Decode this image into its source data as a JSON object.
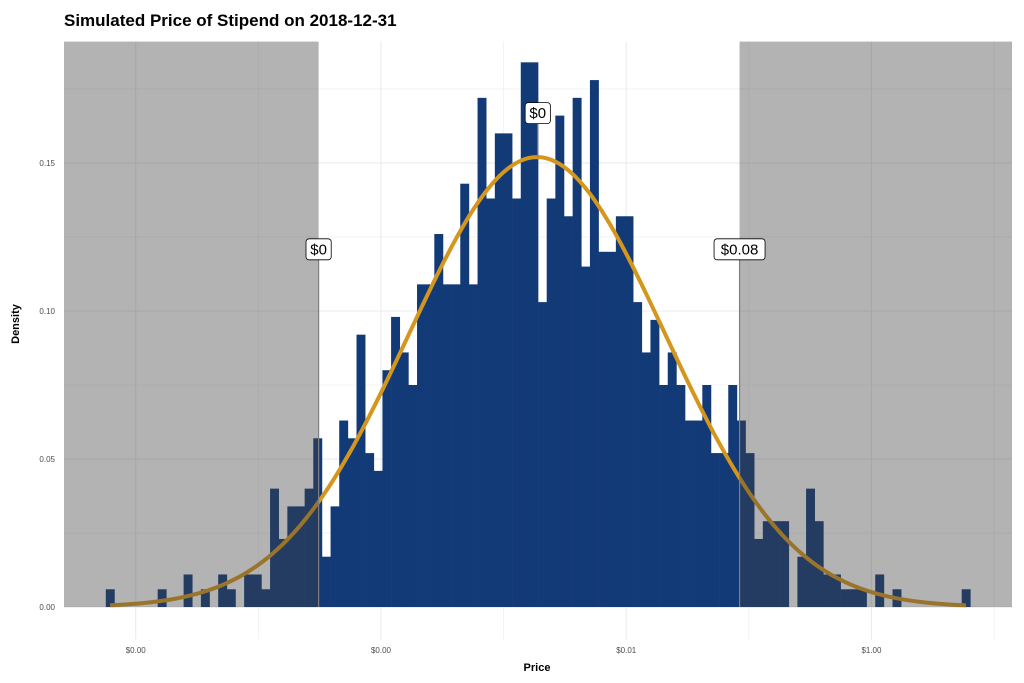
{
  "chart_data": {
    "type": "bar",
    "subtype": "histogram with fitted density curve",
    "title": "Simulated Price of Stipend on 2018-12-31",
    "xlabel": "Price",
    "ylabel": "Density",
    "x_scale": "log10",
    "xlim": [
      2.6e-07,
      14
    ],
    "ylim": [
      -0.011,
      0.191
    ],
    "grid": true,
    "x_ticks": [
      {
        "value": 1e-06,
        "label": "$0.00"
      },
      {
        "value": 0.0001,
        "label": "$0.00"
      },
      {
        "value": 0.01,
        "label": "$0.01"
      },
      {
        "value": 1,
        "label": "$1.00"
      }
    ],
    "x_minor_ticks": [
      1e-05,
      0.001,
      0.1,
      10
    ],
    "y_ticks": [
      {
        "value": 0,
        "label": "0.00"
      },
      {
        "value": 0.05,
        "label": "0.05"
      },
      {
        "value": 0.1,
        "label": "0.10"
      },
      {
        "value": 0.15,
        "label": "0.15"
      }
    ],
    "y_minor_ticks": [
      0.025,
      0.075,
      0.125,
      0.175
    ],
    "histogram": {
      "bin_min": 5.7e-07,
      "bin_max": 6.4,
      "bins": 100,
      "densities": [
        0.006,
        0,
        0,
        0,
        0,
        0,
        0.006,
        0,
        0,
        0.011,
        0,
        0.006,
        0,
        0.011,
        0.006,
        0,
        0.011,
        0.011,
        0.006,
        0.04,
        0.023,
        0.034,
        0.034,
        0.04,
        0.057,
        0.017,
        0.034,
        0.063,
        0.057,
        0.092,
        0.052,
        0.046,
        0.08,
        0.098,
        0.086,
        0.075,
        0.109,
        0.109,
        0.126,
        0.109,
        0.109,
        0.143,
        0.109,
        0.172,
        0.138,
        0.16,
        0.16,
        0.138,
        0.184,
        0.184,
        0.103,
        0.138,
        0.166,
        0.132,
        0.172,
        0.115,
        0.178,
        0.12,
        0.12,
        0.132,
        0.132,
        0.103,
        0.086,
        0.097,
        0.075,
        0.086,
        0.075,
        0.063,
        0.063,
        0.075,
        0.052,
        0.052,
        0.075,
        0.063,
        0.052,
        0.023,
        0.029,
        0.029,
        0.029,
        0,
        0.017,
        0.04,
        0.029,
        0.011,
        0.011,
        0.006,
        0.006,
        0.006,
        0,
        0.011,
        0,
        0.006,
        0,
        0,
        0,
        0,
        0,
        0,
        0,
        0.006
      ]
    },
    "density_curve": {
      "mean_log10": -2.727,
      "sd_log10": 1.045,
      "peak": 0.152
    },
    "thresholds": {
      "lower": {
        "value": 3.1e-05,
        "label": "$0"
      },
      "median": {
        "value": 0.0019,
        "label": "$0"
      },
      "upper": {
        "value": 0.084,
        "label": "$0.08"
      }
    },
    "colors": {
      "bars": "#123a77",
      "curve": "#d4961c",
      "shade": "#414141",
      "grid": "#ebebeb"
    }
  }
}
